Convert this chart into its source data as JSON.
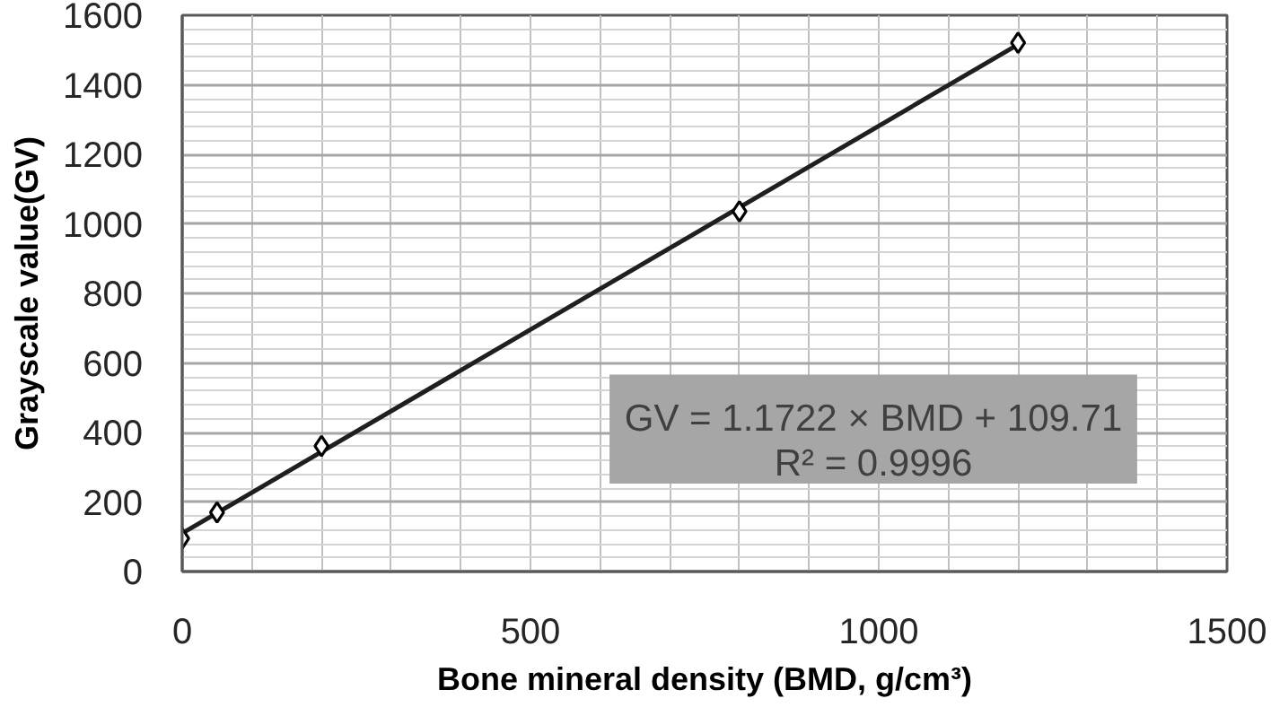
{
  "chart_data": {
    "type": "scatter",
    "xlabel": "Bone mineral density (BMD, g/cm³)",
    "ylabel": "Grayscale value(GV)",
    "x": [
      0,
      50,
      200,
      800,
      1200
    ],
    "series": [
      {
        "type": "line",
        "color": "#1f1f1f",
        "x": [
          0,
          1200
        ],
        "values": [
          110,
          1516
        ],
        "marker": "none",
        "line_style": "solid"
      },
      {
        "color": "#000000",
        "values": [
          95,
          170,
          361,
          1036,
          1521
        ]
      }
    ],
    "marker": "diamond",
    "xlim": [
      0,
      1500
    ],
    "ylim": [
      0,
      1600
    ],
    "xticks": [
      0,
      {
        "value": 100,
        "label": null
      },
      {
        "value": 200,
        "label": null
      },
      {
        "value": 300,
        "label": null
      },
      {
        "value": 400,
        "label": null
      },
      500,
      {
        "value": 600,
        "label": null
      },
      {
        "value": 700,
        "label": null
      },
      {
        "value": 800,
        "label": null
      },
      {
        "value": 900,
        "label": null
      },
      1000,
      {
        "value": 1100,
        "label": null
      },
      {
        "value": 1200,
        "label": null
      },
      {
        "value": 1300,
        "label": null
      },
      {
        "value": 1400,
        "label": null
      },
      1500
    ],
    "yticks": [
      0,
      {
        "value": 40,
        "label": null
      },
      {
        "value": 80,
        "label": null
      },
      {
        "value": 120,
        "label": null
      },
      {
        "value": 160,
        "label": null
      },
      200,
      {
        "value": 240,
        "label": null
      },
      {
        "value": 280,
        "label": null
      },
      {
        "value": 320,
        "label": null
      },
      {
        "value": 360,
        "label": null
      },
      400,
      {
        "value": 440,
        "label": null
      },
      {
        "value": 480,
        "label": null
      },
      {
        "value": 520,
        "label": null
      },
      {
        "value": 560,
        "label": null
      },
      600,
      {
        "value": 640,
        "label": null
      },
      {
        "value": 680,
        "label": null
      },
      {
        "value": 720,
        "label": null
      },
      {
        "value": 760,
        "label": null
      },
      800,
      {
        "value": 840,
        "label": null
      },
      {
        "value": 880,
        "label": null
      },
      {
        "value": 920,
        "label": null
      },
      {
        "value": 960,
        "label": null
      },
      1000,
      {
        "value": 1040,
        "label": null
      },
      {
        "value": 1080,
        "label": null
      },
      {
        "value": 1120,
        "label": null
      },
      {
        "value": 1160,
        "label": null
      },
      1200,
      {
        "value": 1240,
        "label": null
      },
      {
        "value": 1280,
        "label": null
      },
      {
        "value": 1320,
        "label": null
      },
      {
        "value": 1360,
        "label": null
      },
      1400,
      {
        "value": 1440,
        "label": null
      },
      {
        "value": 1480,
        "label": null
      },
      {
        "value": 1520,
        "label": null
      },
      {
        "value": 1560,
        "label": null
      },
      1600
    ],
    "grid": true,
    "annotations": [
      "GV = 1.1722 × BMD + 109.71",
      "R² = 0.9996"
    ]
  }
}
